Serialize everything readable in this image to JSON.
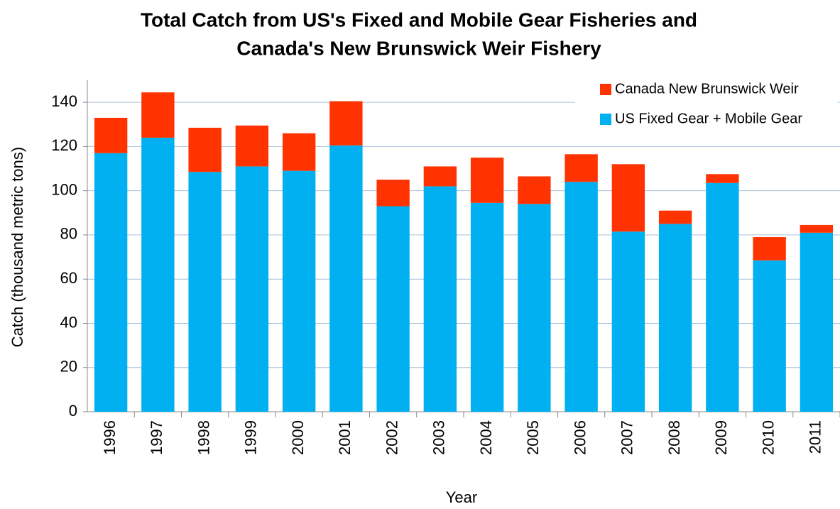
{
  "chart_data": {
    "type": "stacked_bar",
    "title": [
      "Total Catch from US's Fixed and Mobile Gear Fisheries and",
      "Canada's New Brunswick Weir Fishery"
    ],
    "x_label": "Year",
    "y_label": "Catch (thousand metric tons)",
    "categories": [
      "1996",
      "1997",
      "1998",
      "1999",
      "2000",
      "2001",
      "2002",
      "2003",
      "2004",
      "2005",
      "2006",
      "2007",
      "2008",
      "2009",
      "2010",
      "2011"
    ],
    "series": [
      {
        "name": "US Fixed Gear + Mobile Gear",
        "color": "#00b0f0",
        "values": [
          117,
          124,
          108.5,
          111,
          109,
          120.5,
          93,
          102,
          94.5,
          94,
          104,
          81.5,
          85,
          103.5,
          68.5,
          81
        ]
      },
      {
        "name": "Canada New Brunswick Weir",
        "color": "#ff3300",
        "values": [
          16,
          20.5,
          20,
          18.5,
          17,
          20,
          12,
          9,
          20.5,
          12.5,
          12.5,
          30.5,
          6,
          4,
          10.5,
          3.5
        ]
      }
    ],
    "ylim": [
      0,
      150
    ],
    "yticks": [
      0,
      20,
      40,
      60,
      80,
      100,
      120,
      140
    ],
    "grid": true
  }
}
